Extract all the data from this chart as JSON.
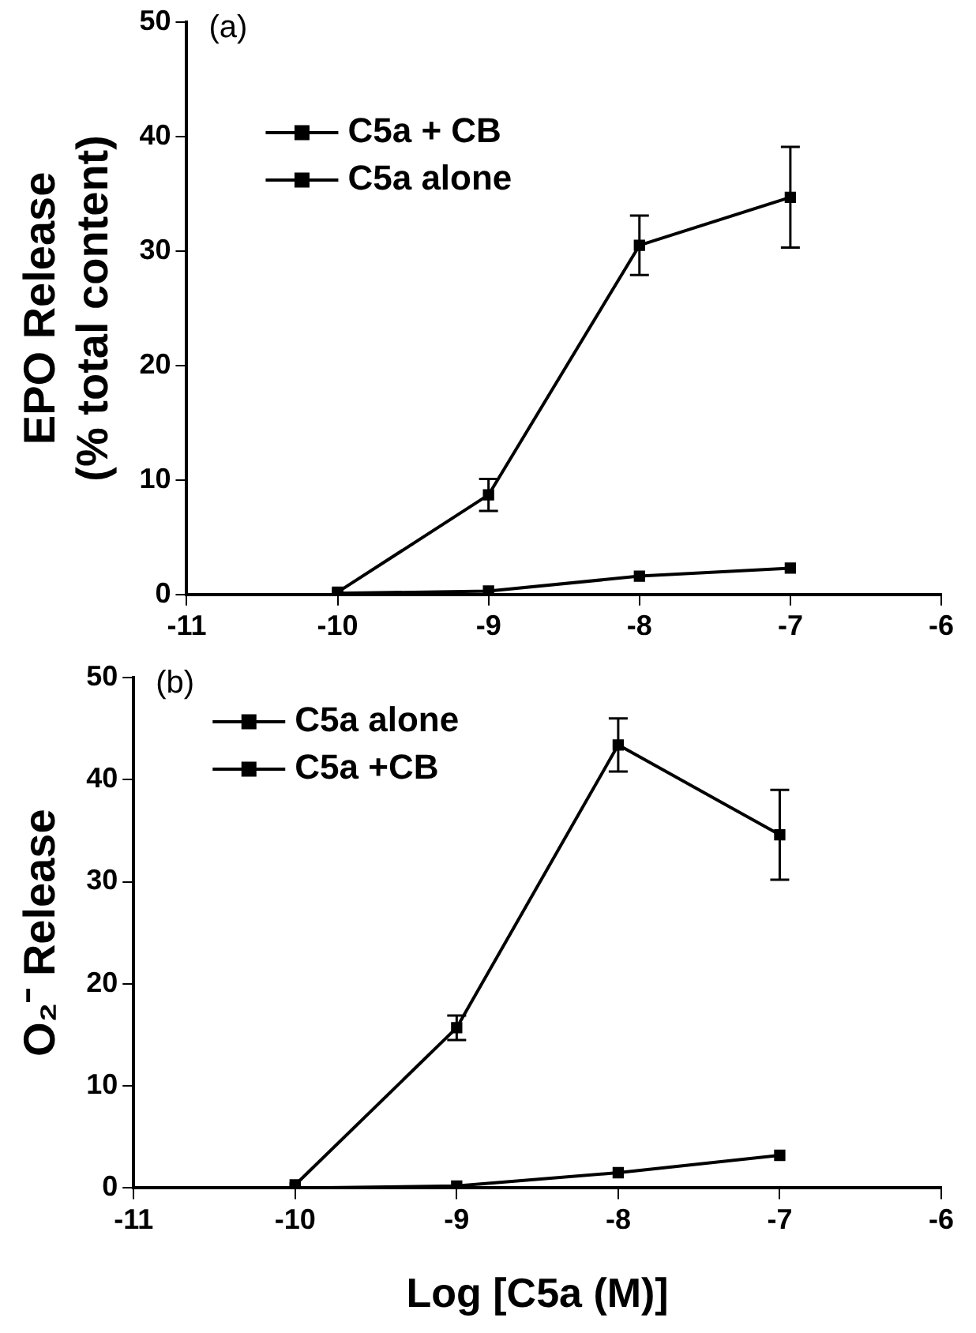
{
  "chart_data": [
    {
      "type": "line",
      "ylabel": "EPO Release\n(% total content)",
      "annotations": [
        "(a)"
      ],
      "x": [
        -10,
        -9,
        -8,
        -7
      ],
      "xlim": [
        -11,
        -6
      ],
      "xticks": [
        -11,
        -10,
        -9,
        -8,
        -7,
        -6
      ],
      "ylim": [
        0,
        50
      ],
      "yticks": [
        0,
        10,
        20,
        30,
        40,
        50
      ],
      "series": [
        {
          "name": "C5a + CB",
          "color": "#000000",
          "values": [
            0.2,
            8.7,
            30.5,
            34.7
          ],
          "errors": [
            null,
            1.4,
            2.6,
            4.4
          ]
        },
        {
          "name": "C5a alone",
          "color": "#000000",
          "values": [
            0.1,
            0.3,
            1.6,
            2.3
          ],
          "errors": [
            null,
            null,
            null,
            null
          ]
        }
      ],
      "marker": "square",
      "line_style": "solid",
      "grid": false,
      "legend": "top left"
    },
    {
      "type": "line",
      "xlabel": "Log [C5a (M)]",
      "ylabel": "O₂⁻ Release",
      "annotations": [
        "(b)"
      ],
      "x": [
        -10,
        -9,
        -8,
        -7
      ],
      "xlim": [
        -11,
        -6
      ],
      "xticks": [
        -11,
        -10,
        -9,
        -8,
        -7,
        -6
      ],
      "ylim": [
        0,
        50
      ],
      "yticks": [
        0,
        10,
        20,
        30,
        40,
        50
      ],
      "series": [
        {
          "name": "C5a alone",
          "color": "#000000",
          "values": [
            0.3,
            15.7,
            43.4,
            34.6
          ],
          "errors": [
            null,
            1.2,
            2.6,
            4.4
          ]
        },
        {
          "name": "C5a +CB",
          "color": "#000000",
          "values": [
            0.0,
            0.2,
            1.5,
            3.2
          ],
          "errors": [
            null,
            null,
            null,
            null
          ]
        }
      ],
      "marker": "square",
      "line_style": "solid",
      "grid": false,
      "legend": "top left"
    }
  ]
}
